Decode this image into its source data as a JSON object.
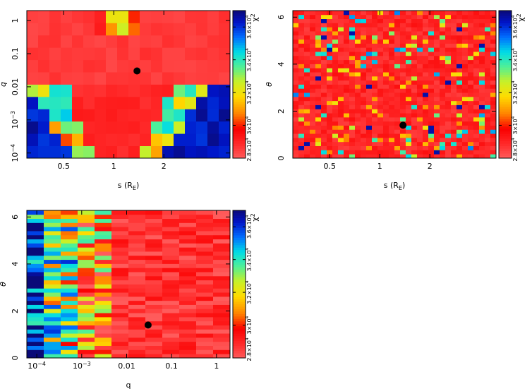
{
  "chart_data": [
    {
      "type": "heatmap",
      "panel": "top-left",
      "x_param": "s",
      "y_param": "q",
      "xlabel": "s (R",
      "xlabel_sub": "E",
      "xlabel_close": ")",
      "ylabel": "q",
      "xscale": "log",
      "yscale": "log",
      "xlim": [
        0.3,
        5.0
      ],
      "ylim": [
        7e-05,
        2.0
      ],
      "xticks": [
        {
          "v": 0.5,
          "label": "0.5"
        },
        {
          "v": 1,
          "label": "1"
        },
        {
          "v": 2,
          "label": "2"
        }
      ],
      "yticks": [
        {
          "v": 1,
          "base": "1",
          "exp": ""
        },
        {
          "v": 0.1,
          "base": "0.1",
          "exp": ""
        },
        {
          "v": 0.01,
          "base": "0.01",
          "exp": ""
        },
        {
          "v": 0.001,
          "base": "10",
          "exp": "−3"
        },
        {
          "v": 0.0001,
          "base": "10",
          "exp": "−4"
        }
      ],
      "grid": {
        "nx": 18,
        "ny": 12
      },
      "best_fit": {
        "s": 1.38,
        "q": 0.03
      },
      "colorbar": {
        "label": "χ",
        "label_exp": "2",
        "range": [
          28000,
          37000
        ],
        "ticks": [
          {
            "v": 28000,
            "base": "2.8×10",
            "exp": "4"
          },
          {
            "v": 30000,
            "base": "3×10",
            "exp": "4"
          },
          {
            "v": 32000,
            "base": "3.2×10",
            "exp": "4"
          },
          {
            "v": 34000,
            "base": "3.4×10",
            "exp": "4"
          },
          {
            "v": 36000,
            "base": "3.6×10",
            "exp": "4"
          }
        ]
      }
    },
    {
      "type": "heatmap",
      "panel": "top-right",
      "x_param": "s",
      "y_param": "theta",
      "xlabel": "s (R",
      "xlabel_sub": "E",
      "xlabel_close": ")",
      "ylabel": "θ",
      "xscale": "log",
      "yscale": "linear",
      "xlim": [
        0.3,
        5.0
      ],
      "ylim": [
        0,
        6.28
      ],
      "xticks": [
        {
          "v": 0.5,
          "label": "0.5"
        },
        {
          "v": 1,
          "label": "1"
        },
        {
          "v": 2,
          "label": "2"
        }
      ],
      "yticks": [
        {
          "v": 0,
          "base": "0",
          "exp": ""
        },
        {
          "v": 2,
          "base": "2",
          "exp": ""
        },
        {
          "v": 4,
          "base": "4",
          "exp": ""
        },
        {
          "v": 6,
          "base": "6",
          "exp": ""
        }
      ],
      "grid": {
        "nx": 36,
        "ny": 36
      },
      "best_fit": {
        "s": 1.38,
        "theta": 1.4
      },
      "colorbar": {
        "label": "χ",
        "label_exp": "2",
        "range": [
          28000,
          37000
        ],
        "ticks": [
          {
            "v": 28000,
            "base": "2.8×10",
            "exp": "4"
          },
          {
            "v": 30000,
            "base": "3×10",
            "exp": "4"
          },
          {
            "v": 32000,
            "base": "3.2×10",
            "exp": "4"
          },
          {
            "v": 34000,
            "base": "3.4×10",
            "exp": "4"
          },
          {
            "v": 36000,
            "base": "3.6×10",
            "exp": "4"
          }
        ]
      }
    },
    {
      "type": "heatmap",
      "panel": "bottom-left",
      "x_param": "q",
      "y_param": "theta",
      "xlabel": "q",
      "xlabel_sub": "",
      "xlabel_close": "",
      "ylabel": "θ",
      "xscale": "log",
      "yscale": "linear",
      "xlim": [
        6e-05,
        2.0
      ],
      "ylim": [
        0,
        6.28
      ],
      "xticks": [
        {
          "v": 0.0001,
          "base": "10",
          "exp": "−4"
        },
        {
          "v": 0.001,
          "base": "10",
          "exp": "−3"
        },
        {
          "v": 0.01,
          "base": "0.01",
          "exp": ""
        },
        {
          "v": 0.1,
          "base": "0.1",
          "exp": ""
        },
        {
          "v": 1,
          "base": "1",
          "exp": ""
        }
      ],
      "yticks": [
        {
          "v": 0,
          "base": "0",
          "exp": ""
        },
        {
          "v": 2,
          "base": "2",
          "exp": ""
        },
        {
          "v": 4,
          "base": "4",
          "exp": ""
        },
        {
          "v": 6,
          "base": "6",
          "exp": ""
        }
      ],
      "grid": {
        "nx": 12,
        "ny": 36
      },
      "best_fit": {
        "q": 0.03,
        "theta": 1.4
      },
      "colorbar": {
        "label": "χ",
        "label_exp": "2",
        "range": [
          28000,
          37000
        ],
        "ticks": [
          {
            "v": 28000,
            "base": "2.8×10",
            "exp": "4"
          },
          {
            "v": 30000,
            "base": "3×10",
            "exp": "4"
          },
          {
            "v": 32000,
            "base": "3.2×10",
            "exp": "4"
          },
          {
            "v": 34000,
            "base": "3.4×10",
            "exp": "4"
          },
          {
            "v": 36000,
            "base": "3.6×10",
            "exp": "4"
          }
        ]
      }
    }
  ]
}
